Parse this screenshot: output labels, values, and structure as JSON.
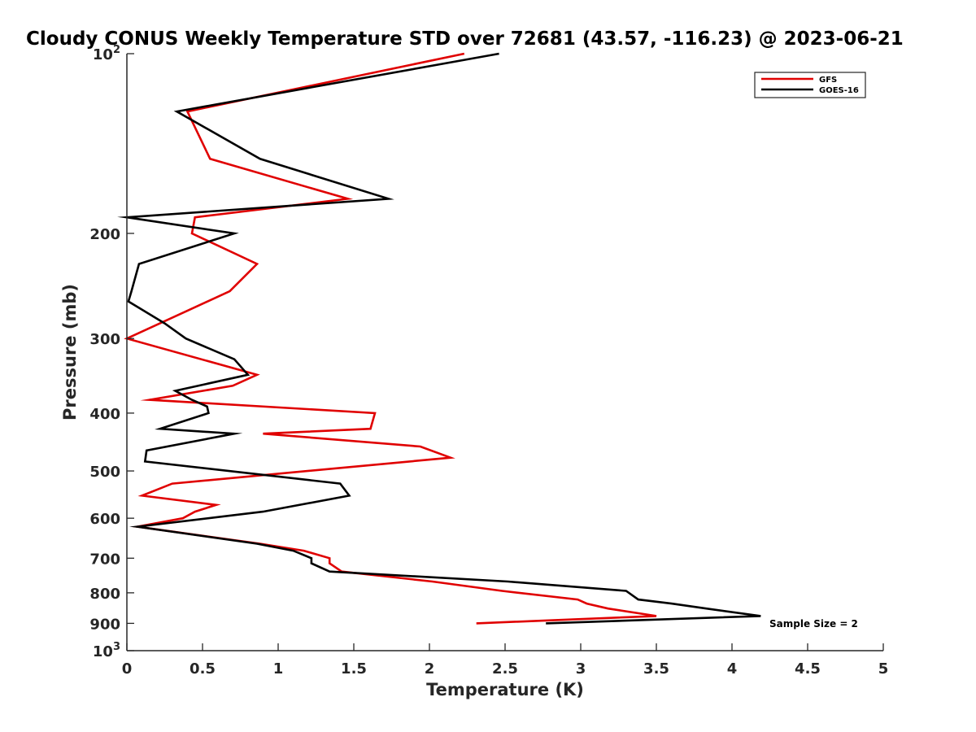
{
  "chart_data": {
    "type": "line",
    "title": "Cloudy CONUS Weekly Temperature STD over 72681 (43.57, -116.23) @ 2023-06-21",
    "xlabel": "Temperature (K)",
    "ylabel": "Pressure (mb)",
    "xlim": [
      0,
      5
    ],
    "ylim": [
      100,
      1000
    ],
    "y_scale": "log",
    "y_reversed": true,
    "x_ticks": [
      "0",
      "0.5",
      "1",
      "1.5",
      "2",
      "2.5",
      "3",
      "3.5",
      "4",
      "4.5",
      "5"
    ],
    "x_tick_values": [
      0,
      0.5,
      1,
      1.5,
      2,
      2.5,
      3,
      3.5,
      4,
      4.5,
      5
    ],
    "y_ticks": [
      {
        "value": 100,
        "base": "10",
        "exp": "2"
      },
      {
        "value": 200,
        "label": "200"
      },
      {
        "value": 300,
        "label": "300"
      },
      {
        "value": 400,
        "label": "400"
      },
      {
        "value": 500,
        "label": "500"
      },
      {
        "value": 600,
        "label": "600"
      },
      {
        "value": 700,
        "label": "700"
      },
      {
        "value": 800,
        "label": "800"
      },
      {
        "value": 900,
        "label": "900"
      },
      {
        "value": 1000,
        "base": "10",
        "exp": "3"
      }
    ],
    "grid": false,
    "legend_position": "top-right",
    "annotation": "Sample Size = 2",
    "series": [
      {
        "name": "GFS",
        "color": "#e00000",
        "points": [
          [
            2.23,
            100
          ],
          [
            0.4,
            125
          ],
          [
            0.55,
            150
          ],
          [
            1.46,
            175
          ],
          [
            0.45,
            188
          ],
          [
            0.43,
            200
          ],
          [
            0.86,
            225
          ],
          [
            0.68,
            250
          ],
          [
            0.0,
            300
          ],
          [
            0.86,
            345
          ],
          [
            0.7,
            360
          ],
          [
            0.15,
            380
          ],
          [
            1.64,
            400
          ],
          [
            1.61,
            425
          ],
          [
            0.9,
            433
          ],
          [
            1.94,
            455
          ],
          [
            2.14,
            475
          ],
          [
            0.3,
            525
          ],
          [
            0.1,
            550
          ],
          [
            0.59,
            570
          ],
          [
            0.45,
            585
          ],
          [
            0.37,
            600
          ],
          [
            0.07,
            620
          ],
          [
            0.88,
            662
          ],
          [
            1.17,
            680
          ],
          [
            1.34,
            700
          ],
          [
            1.34,
            714
          ],
          [
            1.42,
            737
          ],
          [
            2.02,
            766
          ],
          [
            2.48,
            794
          ],
          [
            2.98,
            821
          ],
          [
            3.04,
            834
          ],
          [
            3.18,
            850
          ],
          [
            3.5,
            875
          ],
          [
            2.31,
            900
          ]
        ]
      },
      {
        "name": "GOES-16",
        "color": "#000000",
        "points": [
          [
            2.46,
            100
          ],
          [
            0.33,
            125
          ],
          [
            0.88,
            150
          ],
          [
            1.73,
            175
          ],
          [
            0.0,
            188
          ],
          [
            0.71,
            200
          ],
          [
            0.08,
            225
          ],
          [
            0.03,
            250
          ],
          [
            0.01,
            260
          ],
          [
            0.25,
            283
          ],
          [
            0.39,
            300
          ],
          [
            0.71,
            325
          ],
          [
            0.8,
            345
          ],
          [
            0.32,
            367
          ],
          [
            0.43,
            380
          ],
          [
            0.53,
            390
          ],
          [
            0.54,
            400
          ],
          [
            0.22,
            425
          ],
          [
            0.71,
            433
          ],
          [
            0.13,
            462
          ],
          [
            0.12,
            482
          ],
          [
            1.41,
            525
          ],
          [
            1.47,
            550
          ],
          [
            0.9,
            585
          ],
          [
            0.07,
            620
          ],
          [
            0.86,
            662
          ],
          [
            1.1,
            680
          ],
          [
            1.22,
            700
          ],
          [
            1.22,
            714
          ],
          [
            1.34,
            737
          ],
          [
            2.52,
            766
          ],
          [
            3.3,
            794
          ],
          [
            3.38,
            821
          ],
          [
            3.6,
            834
          ],
          [
            3.83,
            850
          ],
          [
            4.19,
            875
          ],
          [
            2.77,
            900
          ]
        ]
      }
    ]
  }
}
